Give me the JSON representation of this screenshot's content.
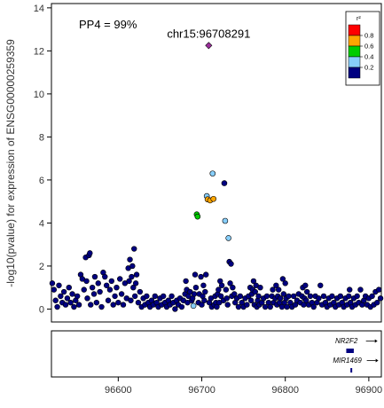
{
  "chart_data": {
    "type": "scatter",
    "title": "",
    "annotation": "PP4 = 99%",
    "lead_snp_label": "chr15:96708291",
    "xlabel": "",
    "ylabel": "-log10(pvalue) for expression of ENSG00000259359",
    "xlim": [
      96520,
      96915
    ],
    "ylim": [
      -0.6,
      14.2
    ],
    "x_ticks": [
      96600,
      96700,
      96800,
      96900
    ],
    "x_tick_labels": [
      "96600",
      "96700",
      "96800",
      "96900"
    ],
    "y_ticks": [
      0,
      2,
      4,
      6,
      8,
      10,
      12,
      14
    ],
    "y_tick_labels": [
      "0",
      "2",
      "4",
      "6",
      "8",
      "10",
      "12",
      "14"
    ],
    "grid": false,
    "legend": {
      "title": "r²",
      "placement": "top-right",
      "entries": [
        {
          "label": "0.8",
          "color": "#ff0000"
        },
        {
          "label": "0.6",
          "color": "#ffa500"
        },
        {
          "label": "0.4",
          "color": "#00cc00"
        },
        {
          "label": "0.2",
          "color": "#87cefa"
        },
        {
          "label": "",
          "color": "#000080"
        }
      ]
    },
    "colors": {
      "lead": "#9b2f9b",
      "r2_0.6_0.8": "#ffa500",
      "r2_0.4_0.6": "#00cc00",
      "r2_0.2_0.4": "#87cefa",
      "r2_0_0.2": "#000080"
    },
    "highlighted_points": [
      {
        "x": 96708.3,
        "y": 12.25,
        "group": "lead"
      },
      {
        "x": 96713,
        "y": 6.3,
        "group": "r2_0.2_0.4"
      },
      {
        "x": 96727,
        "y": 5.85,
        "group": "r2_0_0.2"
      },
      {
        "x": 96706,
        "y": 5.25,
        "group": "r2_0.2_0.4"
      },
      {
        "x": 96707,
        "y": 5.1,
        "group": "r2_0.6_0.8"
      },
      {
        "x": 96710,
        "y": 5.05,
        "group": "r2_0.6_0.8"
      },
      {
        "x": 96714,
        "y": 5.12,
        "group": "r2_0.6_0.8"
      },
      {
        "x": 96694,
        "y": 4.4,
        "group": "r2_0.4_0.6"
      },
      {
        "x": 96695,
        "y": 4.3,
        "group": "r2_0.4_0.6"
      },
      {
        "x": 96728,
        "y": 4.1,
        "group": "r2_0.2_0.4"
      },
      {
        "x": 96732,
        "y": 3.3,
        "group": "r2_0.2_0.4"
      },
      {
        "x": 96690,
        "y": 0.15,
        "group": "r2_0.2_0.4"
      }
    ],
    "background_points": [
      [
        96521,
        1.2
      ],
      [
        96523,
        0.9
      ],
      [
        96525,
        0.4
      ],
      [
        96527,
        0.1
      ],
      [
        96529,
        1.1
      ],
      [
        96531,
        0.6
      ],
      [
        96533,
        0.3
      ],
      [
        96535,
        0.8
      ],
      [
        96537,
        0.2
      ],
      [
        96539,
        0.5
      ],
      [
        96541,
        1.0
      ],
      [
        96543,
        0.3
      ],
      [
        96545,
        0.7
      ],
      [
        96547,
        0.1
      ],
      [
        96549,
        0.4
      ],
      [
        96551,
        0.6
      ],
      [
        96553,
        0.2
      ],
      [
        96555,
        1.6
      ],
      [
        96557,
        1.4
      ],
      [
        96559,
        0.9
      ],
      [
        96561,
        2.4
      ],
      [
        96562,
        1.3
      ],
      [
        96563,
        0.5
      ],
      [
        96565,
        2.5
      ],
      [
        96566,
        2.6
      ],
      [
        96567,
        0.2
      ],
      [
        96569,
        1.0
      ],
      [
        96571,
        0.7
      ],
      [
        96572,
        1.5
      ],
      [
        96574,
        0.3
      ],
      [
        96576,
        1.2
      ],
      [
        96578,
        0.8
      ],
      [
        96580,
        0.1
      ],
      [
        96582,
        1.7
      ],
      [
        96584,
        1.5
      ],
      [
        96586,
        1.1
      ],
      [
        96588,
        0.4
      ],
      [
        96590,
        0.9
      ],
      [
        96592,
        1.3
      ],
      [
        96594,
        0.2
      ],
      [
        96596,
        0.6
      ],
      [
        96598,
        1.0
      ],
      [
        96600,
        0.3
      ],
      [
        96602,
        1.4
      ],
      [
        96604,
        0.7
      ],
      [
        96606,
        0.2
      ],
      [
        96608,
        1.2
      ],
      [
        96610,
        0.5
      ],
      [
        96612,
        1.9
      ],
      [
        96613,
        1.3
      ],
      [
        96614,
        2.3
      ],
      [
        96615,
        0.4
      ],
      [
        96616,
        1.5
      ],
      [
        96617,
        2.0
      ],
      [
        96618,
        1.0
      ],
      [
        96619,
        2.8
      ],
      [
        96620,
        0.6
      ],
      [
        96621,
        1.2
      ],
      [
        96622,
        1.6
      ],
      [
        96624,
        0.3
      ],
      [
        96626,
        0.8
      ],
      [
        96628,
        0.1
      ],
      [
        96630,
        0.5
      ],
      [
        96632,
        0.2
      ],
      [
        96634,
        0.6
      ],
      [
        96636,
        0.3
      ],
      [
        96638,
        0.1
      ],
      [
        96640,
        0.4
      ],
      [
        96642,
        0.2
      ],
      [
        96644,
        0.6
      ],
      [
        96646,
        0.3
      ],
      [
        96648,
        0.1
      ],
      [
        96650,
        0.5
      ],
      [
        96652,
        0.2
      ],
      [
        96654,
        0.6
      ],
      [
        96656,
        0.3
      ],
      [
        96658,
        0.1
      ],
      [
        96660,
        0.4
      ],
      [
        96662,
        0.2
      ],
      [
        96664,
        0.6
      ],
      [
        96666,
        0.3
      ],
      [
        96668,
        0.0
      ],
      [
        96670,
        0.4
      ],
      [
        96672,
        0.2
      ],
      [
        96674,
        0.5
      ],
      [
        96676,
        0.1
      ],
      [
        96678,
        0.4
      ],
      [
        96680,
        0.7
      ],
      [
        96681,
        1.3
      ],
      [
        96682,
        0.9
      ],
      [
        96683,
        0.3
      ],
      [
        96684,
        0.6
      ],
      [
        96686,
        0.8
      ],
      [
        96688,
        0.4
      ],
      [
        96689,
        0.5
      ],
      [
        96691,
        0.7
      ],
      [
        96692,
        1.6
      ],
      [
        96693,
        1.0
      ],
      [
        96696,
        0.3
      ],
      [
        96697,
        0.7
      ],
      [
        96699,
        1.5
      ],
      [
        96700,
        0.2
      ],
      [
        96701,
        0.6
      ],
      [
        96702,
        1.1
      ],
      [
        96703,
        0.4
      ],
      [
        96704,
        0.8
      ],
      [
        96705,
        1.6
      ],
      [
        96709,
        0.3
      ],
      [
        96711,
        0.5
      ],
      [
        96712,
        0.1
      ],
      [
        96715,
        0.2
      ],
      [
        96716,
        0.6
      ],
      [
        96717,
        0.3
      ],
      [
        96718,
        0.1
      ],
      [
        96719,
        0.7
      ],
      [
        96720,
        0.9
      ],
      [
        96721,
        0.3
      ],
      [
        96722,
        1.3
      ],
      [
        96723,
        0.6
      ],
      [
        96724,
        1.1
      ],
      [
        96726,
        0.4
      ],
      [
        96729,
        0.9
      ],
      [
        96730,
        0.5
      ],
      [
        96731,
        0.2
      ],
      [
        96733,
        2.2
      ],
      [
        96734,
        1.2
      ],
      [
        96735,
        2.1
      ],
      [
        96736,
        0.6
      ],
      [
        96737,
        1.0
      ],
      [
        96739,
        0.7
      ],
      [
        96740,
        0.3
      ],
      [
        96742,
        0.5
      ],
      [
        96744,
        0.1
      ],
      [
        96746,
        0.6
      ],
      [
        96748,
        0.3
      ],
      [
        96750,
        0.1
      ],
      [
        96752,
        0.5
      ],
      [
        96754,
        0.2
      ],
      [
        96756,
        0.6
      ],
      [
        96758,
        1.0
      ],
      [
        96759,
        0.4
      ],
      [
        96760,
        0.7
      ],
      [
        96761,
        0.9
      ],
      [
        96762,
        1.3
      ],
      [
        96763,
        0.2
      ],
      [
        96764,
        0.8
      ],
      [
        96765,
        1.1
      ],
      [
        96766,
        0.1
      ],
      [
        96767,
        0.4
      ],
      [
        96768,
        0.6
      ],
      [
        96769,
        0.2
      ],
      [
        96770,
        1.0
      ],
      [
        96772,
        0.3
      ],
      [
        96774,
        0.5
      ],
      [
        96776,
        0.1
      ],
      [
        96778,
        0.6
      ],
      [
        96780,
        0.3
      ],
      [
        96782,
        0.1
      ],
      [
        96784,
        0.6
      ],
      [
        96785,
        0.9
      ],
      [
        96786,
        0.3
      ],
      [
        96788,
        0.5
      ],
      [
        96789,
        1.1
      ],
      [
        96790,
        0.2
      ],
      [
        96791,
        0.6
      ],
      [
        96792,
        0.9
      ],
      [
        96793,
        0.3
      ],
      [
        96794,
        0.5
      ],
      [
        96796,
        0.1
      ],
      [
        96797,
        1.4
      ],
      [
        96798,
        0.7
      ],
      [
        96799,
        0.3
      ],
      [
        96800,
        1.2
      ],
      [
        96801,
        0.5
      ],
      [
        96802,
        0.1
      ],
      [
        96804,
        0.6
      ],
      [
        96806,
        0.3
      ],
      [
        96808,
        0.1
      ],
      [
        96810,
        0.6
      ],
      [
        96812,
        0.2
      ],
      [
        96814,
        0.4
      ],
      [
        96816,
        0.7
      ],
      [
        96818,
        0.3
      ],
      [
        96820,
        0.6
      ],
      [
        96821,
        1.0
      ],
      [
        96822,
        0.2
      ],
      [
        96823,
        0.5
      ],
      [
        96824,
        1.1
      ],
      [
        96825,
        0.4
      ],
      [
        96826,
        0.8
      ],
      [
        96828,
        0.2
      ],
      [
        96830,
        0.6
      ],
      [
        96832,
        0.3
      ],
      [
        96834,
        0.1
      ],
      [
        96836,
        0.6
      ],
      [
        96838,
        0.3
      ],
      [
        96840,
        0.5
      ],
      [
        96842,
        1.1
      ],
      [
        96844,
        0.2
      ],
      [
        96846,
        0.6
      ],
      [
        96848,
        0.3
      ],
      [
        96850,
        0.1
      ],
      [
        96852,
        0.5
      ],
      [
        96854,
        0.2
      ],
      [
        96856,
        0.6
      ],
      [
        96858,
        0.3
      ],
      [
        96860,
        0.1
      ],
      [
        96862,
        0.5
      ],
      [
        96864,
        0.2
      ],
      [
        96866,
        0.6
      ],
      [
        96868,
        0.3
      ],
      [
        96870,
        0.1
      ],
      [
        96872,
        0.5
      ],
      [
        96874,
        0.2
      ],
      [
        96876,
        0.6
      ],
      [
        96877,
        0.9
      ],
      [
        96878,
        0.3
      ],
      [
        96880,
        0.1
      ],
      [
        96882,
        0.5
      ],
      [
        96884,
        0.2
      ],
      [
        96886,
        0.6
      ],
      [
        96888,
        0.3
      ],
      [
        96890,
        0.9
      ],
      [
        96892,
        0.2
      ],
      [
        96894,
        0.4
      ],
      [
        96896,
        0.6
      ],
      [
        96898,
        0.2
      ],
      [
        96900,
        0.5
      ],
      [
        96902,
        0.1
      ],
      [
        96904,
        0.6
      ],
      [
        96906,
        0.2
      ],
      [
        96908,
        0.8
      ],
      [
        96910,
        0.3
      ],
      [
        96912,
        0.9
      ],
      [
        96914,
        0.5
      ]
    ],
    "gene_track": {
      "genes": [
        {
          "name": "NR2F2",
          "start": 96873,
          "end": 96882,
          "strand": "+"
        },
        {
          "name": "MIR1469",
          "start": 96878,
          "end": 96879,
          "strand": "+"
        }
      ]
    }
  }
}
